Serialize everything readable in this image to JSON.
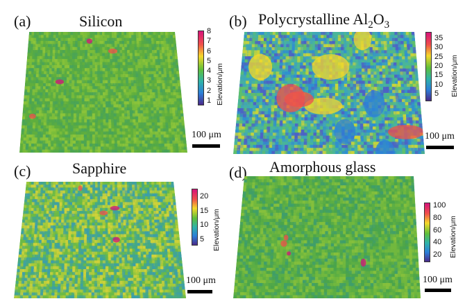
{
  "panels": [
    {
      "id": "a",
      "label": "(a)",
      "title": "Silicon",
      "title_sub": "",
      "title_tail": "",
      "colorbar_unit": "Elevation/μm",
      "colorbar_ticks": [
        "8",
        "7",
        "6",
        "5",
        "4",
        "3",
        "2",
        "1"
      ],
      "scale_label": "100 μm",
      "surface_palette": [
        "#5fae3e",
        "#52a84a",
        "#7bbd3a",
        "#48a35a",
        "#8cc43a"
      ]
    },
    {
      "id": "b",
      "label": "(b)",
      "title": "Polycrystalline Al",
      "title_sub": "2",
      "title_tail": "O",
      "title_tail_sub": "3",
      "colorbar_unit": "Elevation/μm",
      "colorbar_ticks": [
        "35",
        "30",
        "25",
        "20",
        "15",
        "10",
        "5"
      ],
      "scale_label": "100 μm",
      "surface_palette": [
        "#49b59a",
        "#3fa6b8",
        "#5fbf6b",
        "#2f8fd0",
        "#c9d43a",
        "#4c62c6"
      ]
    },
    {
      "id": "c",
      "label": "(c)",
      "title": "Sapphire",
      "title_sub": "",
      "title_tail": "",
      "colorbar_unit": "Elevation/μm",
      "colorbar_ticks": [
        "20",
        "15",
        "10",
        "5"
      ],
      "scale_label": "100 μm",
      "surface_palette": [
        "#6cba46",
        "#43a88a",
        "#a9cb3a",
        "#3c9fa8",
        "#cfd23a"
      ]
    },
    {
      "id": "d",
      "label": "(d)",
      "title": "Amorphous glass",
      "title_sub": "",
      "title_tail": "",
      "colorbar_unit": "Elevation/μm",
      "colorbar_ticks": [
        "100",
        "80",
        "60",
        "40",
        "20"
      ],
      "scale_label": "100 μm",
      "surface_palette": [
        "#5cae44",
        "#4aa44c",
        "#72b83e",
        "#3f9e6a",
        "#86c03c"
      ]
    }
  ],
  "colors": {
    "colorbar_top": "#d6137a",
    "colorbar_upper": "#f0504a",
    "colorbar_mid_high": "#f5d82a",
    "colorbar_mid": "#5fbf3a",
    "colorbar_mid_low": "#2fb3a8",
    "colorbar_low": "#2c7fd8",
    "colorbar_bottom": "#4a2a8a"
  }
}
